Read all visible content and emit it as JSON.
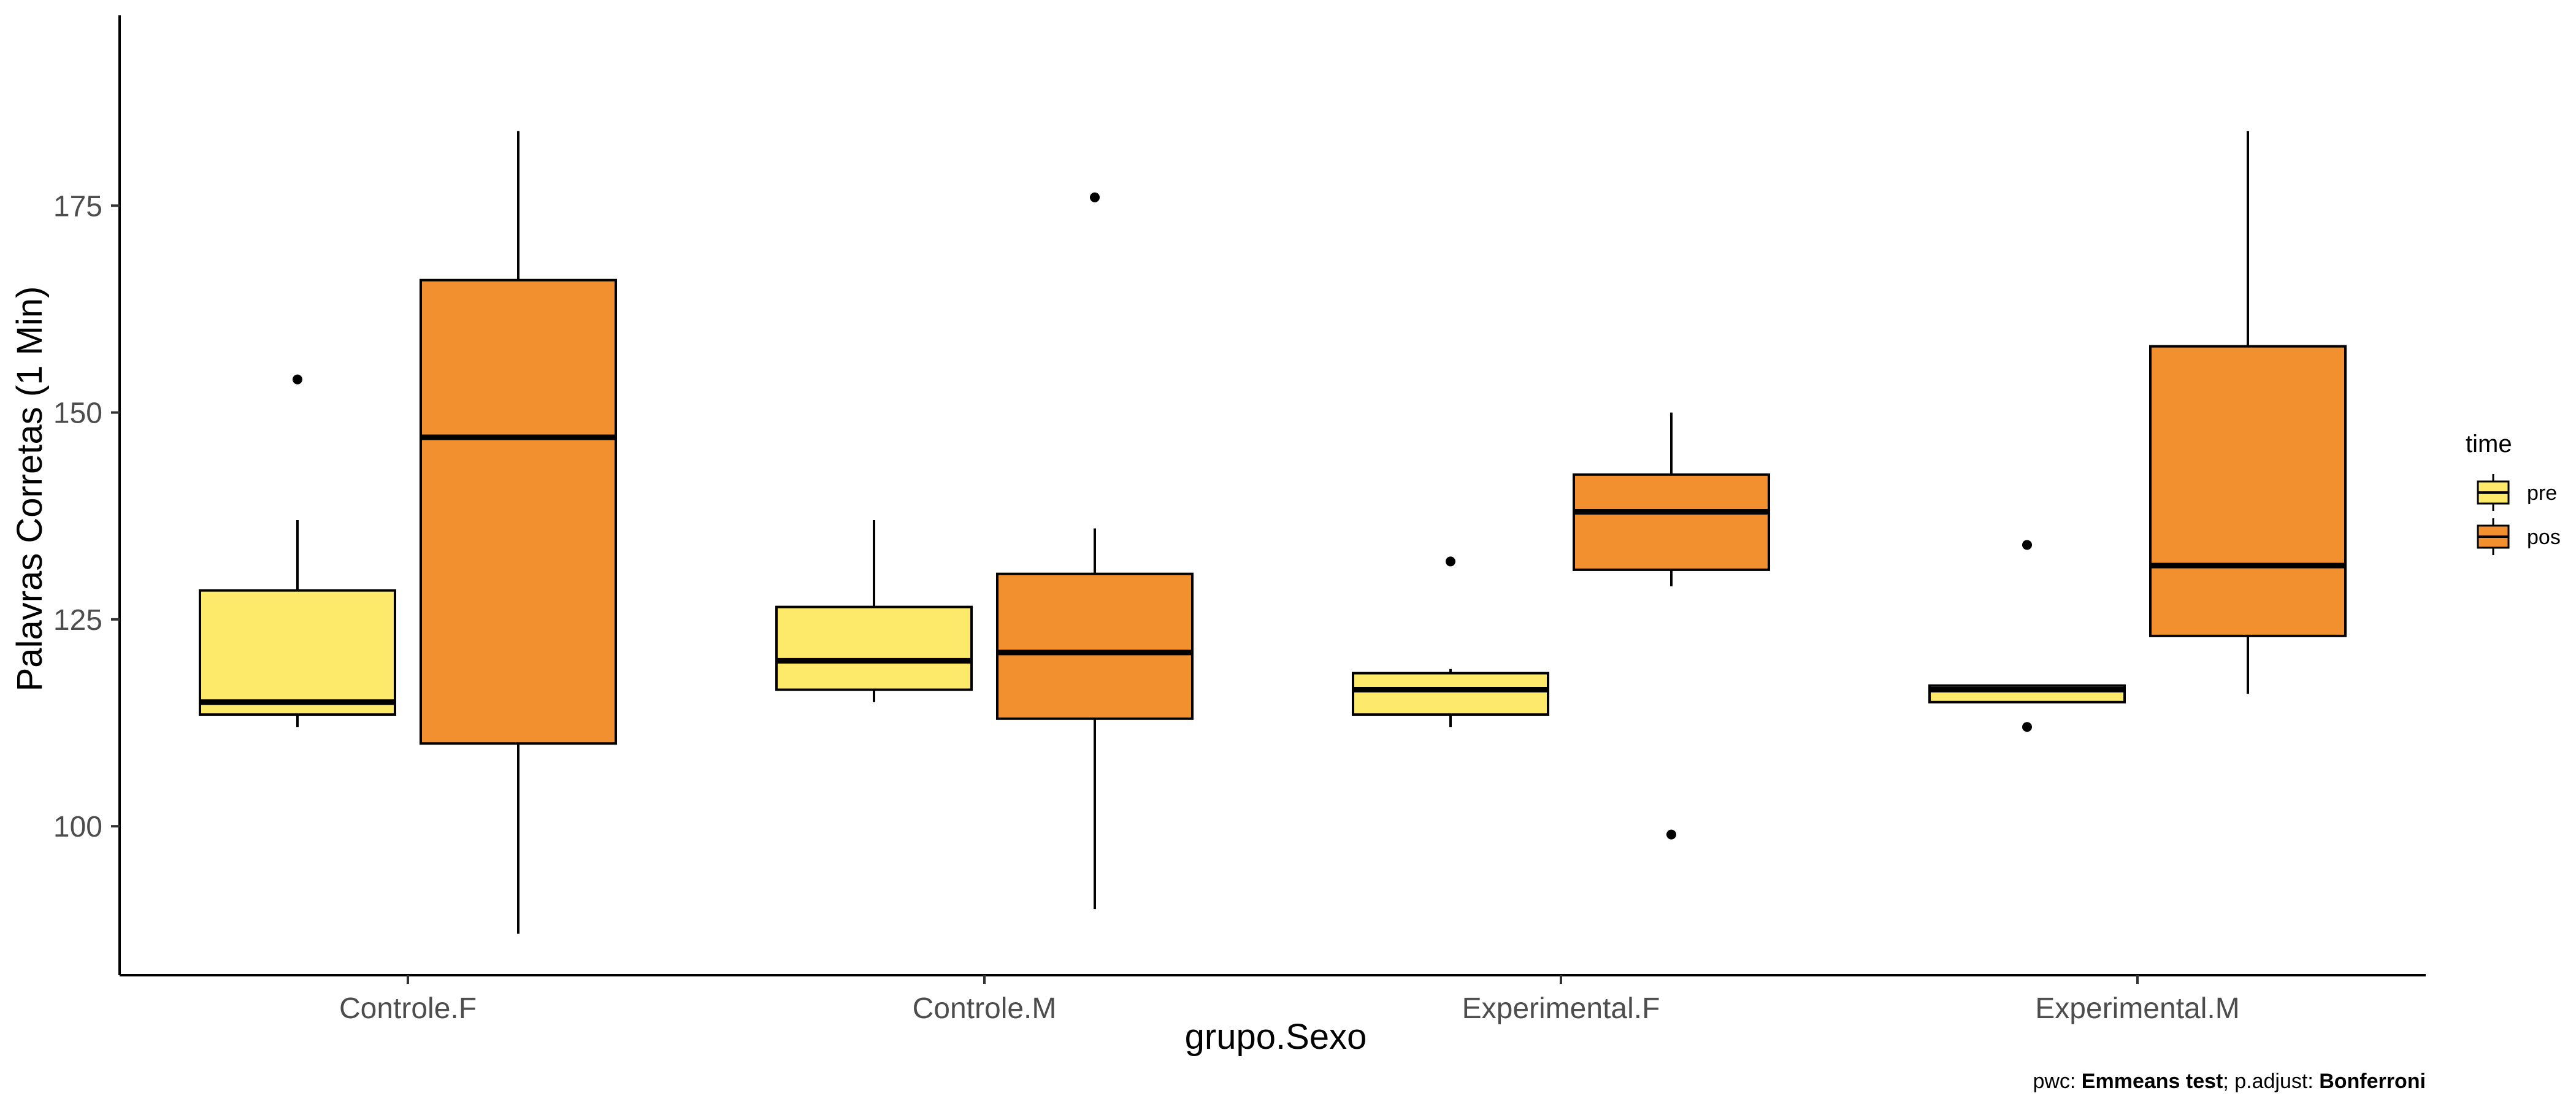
{
  "chart_data": {
    "type": "boxplot",
    "xlabel": "grupo.Sexo",
    "ylabel": "Palavras Corretas (1 Min)",
    "ylim": [
      82,
      198
    ],
    "yticks": [
      100,
      125,
      150,
      175
    ],
    "categories": [
      "Controle.F",
      "Controle.M",
      "Experimental.F",
      "Experimental.M"
    ],
    "legend": {
      "title": "time",
      "position": "right",
      "items": [
        {
          "name": "pre",
          "color": "#fdea6a"
        },
        {
          "name": "pos",
          "color": "#f28f2e"
        }
      ]
    },
    "series": [
      {
        "name": "pre",
        "color": "#fdea6a",
        "boxes": [
          {
            "category": "Controle.F",
            "min": 112,
            "q1": 113.5,
            "median": 115,
            "q3": 128.5,
            "max": 137,
            "outliers": [
              154
            ]
          },
          {
            "category": "Controle.M",
            "min": 115,
            "q1": 116.5,
            "median": 120,
            "q3": 126.5,
            "max": 137,
            "outliers": []
          },
          {
            "category": "Experimental.F",
            "min": 112,
            "q1": 113.5,
            "median": 116.5,
            "q3": 118.5,
            "max": 119,
            "outliers": [
              132
            ]
          },
          {
            "category": "Experimental.M",
            "min": 115,
            "q1": 115,
            "median": 116.5,
            "q3": 117,
            "max": 117,
            "outliers": [
              134,
              112
            ]
          }
        ]
      },
      {
        "name": "pos",
        "color": "#f28f2e",
        "boxes": [
          {
            "category": "Controle.F",
            "min": 87,
            "q1": 110,
            "median": 147,
            "q3": 166,
            "max": 184,
            "outliers": []
          },
          {
            "category": "Controle.M",
            "min": 90,
            "q1": 113,
            "median": 121,
            "q3": 130.5,
            "max": 136,
            "outliers": [
              176
            ]
          },
          {
            "category": "Experimental.F",
            "min": 129,
            "q1": 131,
            "median": 138,
            "q3": 142.5,
            "max": 150,
            "outliers": [
              99
            ]
          },
          {
            "category": "Experimental.M",
            "min": 116,
            "q1": 123,
            "median": 131.5,
            "q3": 158,
            "max": 184,
            "outliers": []
          }
        ]
      }
    ]
  },
  "caption": {
    "prefix1": "pwc: ",
    "method": "Emmeans test",
    "prefix2": "; p.adjust: ",
    "adjust": "Bonferroni"
  }
}
